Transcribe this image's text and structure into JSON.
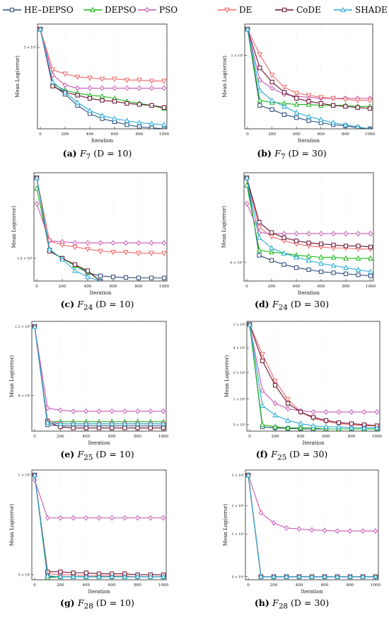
{
  "legend": [
    {
      "name": "HE–DEPSO",
      "color": "#2a4a7a",
      "marker": "square"
    },
    {
      "name": "DEPSO",
      "color": "#18b818",
      "marker": "triangle"
    },
    {
      "name": "PSO",
      "color": "#c858b8",
      "marker": "diamond"
    },
    {
      "name": "DE",
      "color": "#f06868",
      "marker": "triangle-down"
    },
    {
      "name": "CoDE",
      "color": "#6a1030",
      "marker": "square"
    },
    {
      "name": "SHADE",
      "color": "#28aad8",
      "marker": "triangle"
    }
  ],
  "chart_data": [
    {
      "type": "line",
      "caption": {
        "tag": "(a)",
        "fn": "F",
        "sub": "7",
        "dim": "(D = 10)"
      },
      "xlabel": "Iteration",
      "ylabel": "Mean Log(error)",
      "x": [
        0,
        100,
        200,
        300,
        400,
        500,
        600,
        700,
        800,
        900,
        1000
      ],
      "xticks": [
        "0",
        "200",
        "400",
        "600",
        "800",
        "1000"
      ],
      "yticks": [
        {
          "value": 0.82,
          "label": "3 × 10²"
        }
      ],
      "ylim": [
        0.02,
        1.05
      ],
      "series": [
        {
          "values": [
            1.0,
            0.45,
            0.36,
            0.25,
            0.17,
            0.12,
            0.09,
            0.06,
            0.04,
            0.03,
            0.02
          ]
        },
        {
          "values": [
            1.0,
            0.46,
            0.4,
            0.37,
            0.35,
            0.34,
            0.32,
            0.29,
            0.27,
            0.25,
            0.22
          ]
        },
        {
          "values": [
            1.0,
            0.55,
            0.45,
            0.42,
            0.42,
            0.42,
            0.42,
            0.42,
            0.42,
            0.42,
            0.42
          ]
        },
        {
          "values": [
            1.0,
            0.6,
            0.56,
            0.53,
            0.52,
            0.51,
            0.51,
            0.5,
            0.5,
            0.49,
            0.49
          ]
        },
        {
          "values": [
            1.0,
            0.44,
            0.38,
            0.35,
            0.32,
            0.3,
            0.29,
            0.27,
            0.26,
            0.25,
            0.23
          ]
        },
        {
          "values": [
            1.0,
            0.48,
            0.38,
            0.28,
            0.2,
            0.15,
            0.12,
            0.1,
            0.08,
            0.07,
            0.06
          ]
        }
      ]
    },
    {
      "type": "line",
      "caption": {
        "tag": "(b)",
        "fn": "F",
        "sub": "7",
        "dim": "(D = 30)"
      },
      "xlabel": "Iteration",
      "ylabel": "Mean Log(error)",
      "x": [
        0,
        100,
        200,
        300,
        400,
        500,
        600,
        700,
        800,
        900,
        1000
      ],
      "xticks": [
        "0",
        "200",
        "400",
        "600",
        "800",
        "1000"
      ],
      "yticks": [
        {
          "value": 0.74,
          "label": "1 × 10³"
        }
      ],
      "ylim": [
        0.02,
        1.05
      ],
      "series": [
        {
          "values": [
            1.0,
            0.25,
            0.21,
            0.16,
            0.13,
            0.1,
            0.08,
            0.06,
            0.05,
            0.03,
            0.02
          ]
        },
        {
          "values": [
            1.0,
            0.3,
            0.28,
            0.27,
            0.26,
            0.26,
            0.25,
            0.25,
            0.25,
            0.24,
            0.24
          ]
        },
        {
          "values": [
            1.0,
            0.5,
            0.42,
            0.36,
            0.34,
            0.33,
            0.32,
            0.32,
            0.32,
            0.32,
            0.32
          ]
        },
        {
          "values": [
            1.0,
            0.75,
            0.55,
            0.43,
            0.37,
            0.35,
            0.33,
            0.32,
            0.31,
            0.3,
            0.3
          ]
        },
        {
          "values": [
            1.0,
            0.62,
            0.48,
            0.38,
            0.32,
            0.29,
            0.27,
            0.25,
            0.24,
            0.23,
            0.22
          ]
        },
        {
          "values": [
            1.0,
            0.4,
            0.3,
            0.24,
            0.18,
            0.14,
            0.11,
            0.08,
            0.06,
            0.04,
            0.02
          ]
        }
      ]
    },
    {
      "type": "line",
      "caption": {
        "tag": "(c)",
        "fn": "F",
        "sub": "24",
        "dim": "(D = 10)"
      },
      "xlabel": "Iteration",
      "ylabel": "Mean Log(error)",
      "x": [
        0,
        100,
        200,
        300,
        400,
        500,
        600,
        700,
        800,
        900,
        1000
      ],
      "xticks": [
        "0",
        "200",
        "400",
        "600",
        "800",
        "1000"
      ],
      "yticks": [
        {
          "value": 0.22,
          "label": "1.5 × 10²"
        }
      ],
      "ylim": [
        0.0,
        1.05
      ],
      "series": [
        {
          "values": [
            1.0,
            0.3,
            0.22,
            0.15,
            0.08,
            0.05,
            0.04,
            0.035,
            0.03,
            0.03,
            0.03
          ]
        },
        {
          "values": [
            0.9,
            0.3,
            0.22,
            0.15,
            0.09,
            0.0,
            null,
            null,
            null,
            null,
            null
          ]
        },
        {
          "values": [
            0.75,
            0.39,
            0.38,
            0.37,
            0.37,
            0.37,
            0.37,
            0.37,
            0.37,
            0.37,
            0.37
          ]
        },
        {
          "values": [
            1.0,
            0.39,
            0.35,
            0.33,
            0.31,
            0.29,
            0.28,
            0.28,
            0.27,
            0.27,
            0.27
          ]
        },
        {
          "values": [
            1.0,
            0.29,
            0.22,
            0.16,
            0.1,
            0.0,
            null,
            null,
            null,
            null,
            null
          ]
        },
        {
          "values": [
            1.0,
            0.31,
            0.21,
            0.1,
            0.04,
            0.0,
            null,
            null,
            null,
            null,
            null
          ]
        }
      ]
    },
    {
      "type": "line",
      "caption": {
        "tag": "(d)",
        "fn": "F",
        "sub": "24",
        "dim": "(D = 30)"
      },
      "xlabel": "Iteration",
      "ylabel": "Mean Log(error)",
      "x": [
        0,
        100,
        200,
        300,
        400,
        500,
        600,
        700,
        800,
        900,
        1000
      ],
      "xticks": [
        "0",
        "200",
        "400",
        "600",
        "800",
        "1000"
      ],
      "yticks": [
        {
          "value": 0.18,
          "label": "6 × 10²"
        }
      ],
      "ylim": [
        0.0,
        1.05
      ],
      "series": [
        {
          "values": [
            1.0,
            0.25,
            0.2,
            0.16,
            0.13,
            0.11,
            0.09,
            0.08,
            0.07,
            0.06,
            0.05
          ]
        },
        {
          "values": [
            0.93,
            0.3,
            0.28,
            0.27,
            0.25,
            0.24,
            0.23,
            0.23,
            0.22,
            0.22,
            0.22
          ]
        },
        {
          "values": [
            0.75,
            0.47,
            0.46,
            0.46,
            0.46,
            0.46,
            0.46,
            0.46,
            0.46,
            0.46,
            0.46
          ]
        },
        {
          "values": [
            1.0,
            0.52,
            0.43,
            0.39,
            0.36,
            0.34,
            0.33,
            0.32,
            0.32,
            0.31,
            0.31
          ]
        },
        {
          "values": [
            1.0,
            0.57,
            0.47,
            0.42,
            0.39,
            0.37,
            0.36,
            0.35,
            0.34,
            0.34,
            0.33
          ]
        },
        {
          "values": [
            1.0,
            0.42,
            0.32,
            0.27,
            0.23,
            0.2,
            0.17,
            0.15,
            0.13,
            0.11,
            0.09
          ]
        }
      ]
    },
    {
      "type": "line",
      "caption": {
        "tag": "(e)",
        "fn": "F",
        "sub": "25",
        "dim": "(D = 10)"
      },
      "xlabel": "Iteration",
      "ylabel": "Mean Log(error)",
      "x": [
        0,
        100,
        200,
        300,
        400,
        500,
        600,
        700,
        800,
        900,
        1000
      ],
      "xticks": [
        "0",
        "200",
        "400",
        "600",
        "800",
        "1000"
      ],
      "yticks": [
        {
          "value": 1.0,
          "label": "1.2 × 10³"
        },
        {
          "value": 0.34,
          "label": "8 × 10²"
        }
      ],
      "ylim": [
        0.0,
        1.05
      ],
      "series": [
        {
          "values": [
            1.0,
            0.06,
            0.05,
            0.05,
            0.05,
            0.05,
            0.05,
            0.05,
            0.05,
            0.05,
            0.05
          ]
        },
        {
          "values": [
            1.0,
            0.09,
            0.09,
            0.09,
            0.09,
            0.09,
            0.09,
            0.09,
            0.09,
            0.09,
            0.09
          ]
        },
        {
          "values": [
            1.0,
            0.22,
            0.2,
            0.19,
            0.19,
            0.19,
            0.19,
            0.19,
            0.19,
            0.19,
            0.19
          ]
        },
        {
          "values": [
            1.0,
            0.1,
            0.07,
            0.07,
            0.07,
            0.07,
            0.07,
            0.07,
            0.07,
            0.07,
            0.07
          ]
        },
        {
          "values": [
            1.0,
            0.09,
            0.04,
            0.03,
            0.03,
            0.03,
            0.03,
            0.03,
            0.03,
            0.03,
            0.03
          ]
        },
        {
          "values": [
            1.0,
            0.08,
            0.07,
            0.07,
            0.07,
            0.07,
            0.07,
            0.07,
            0.07,
            0.07,
            0.07
          ]
        }
      ]
    },
    {
      "type": "line",
      "caption": {
        "tag": "(f)",
        "fn": "F",
        "sub": "25",
        "dim": "(D = 30)"
      },
      "xlabel": "Iteration",
      "ylabel": "Mean Log(error)",
      "x": [
        0,
        100,
        200,
        300,
        400,
        500,
        600,
        700,
        800,
        900,
        1000
      ],
      "xticks": [
        "0",
        "200",
        "400",
        "600",
        "800",
        "1000"
      ],
      "yticks": [
        {
          "value": 1.0,
          "label": "1 × 10⁴"
        },
        {
          "value": 0.78,
          "label": "4 × 10³"
        },
        {
          "value": 0.55,
          "label": "2 × 10³"
        },
        {
          "value": 0.3,
          "label": "1 × 10³"
        },
        {
          "value": 0.06,
          "label": "5 × 10²"
        }
      ],
      "ylim": [
        0.0,
        1.03
      ],
      "series": [
        {
          "values": [
            1.0,
            0.04,
            0.03,
            0.025,
            0.02,
            0.02,
            0.02,
            0.02,
            0.02,
            0.02,
            0.02
          ]
        },
        {
          "values": [
            1.0,
            0.06,
            0.04,
            0.03,
            0.03,
            0.03,
            0.02,
            0.02,
            0.02,
            0.02,
            0.02
          ]
        },
        {
          "values": [
            1.0,
            0.38,
            0.26,
            0.21,
            0.19,
            0.18,
            0.18,
            0.18,
            0.18,
            0.18,
            0.18
          ]
        },
        {
          "values": [
            1.0,
            0.72,
            0.47,
            0.3,
            0.18,
            0.12,
            0.09,
            0.07,
            0.06,
            0.05,
            0.05
          ]
        },
        {
          "values": [
            1.0,
            0.66,
            0.43,
            0.26,
            0.18,
            0.13,
            0.1,
            0.08,
            0.07,
            0.06,
            0.05
          ]
        },
        {
          "values": [
            1.0,
            0.24,
            0.15,
            0.1,
            0.07,
            0.05,
            0.04,
            0.04,
            0.03,
            0.03,
            0.03
          ]
        }
      ]
    },
    {
      "type": "line",
      "caption": {
        "tag": "(g)",
        "fn": "F",
        "sub": "28",
        "dim": "(D = 10)"
      },
      "xlabel": "Iteration",
      "ylabel": "Mean Log(error)",
      "x": [
        0,
        100,
        200,
        300,
        400,
        500,
        600,
        700,
        800,
        900,
        1000
      ],
      "xticks": [
        "0",
        "200",
        "400",
        "600",
        "800",
        "1000"
      ],
      "yticks": [
        {
          "value": 1.0,
          "label": "1 × 10³"
        },
        {
          "value": 0.0,
          "label": "5 × 10²"
        }
      ],
      "ylim": [
        -0.05,
        1.05
      ],
      "series": [
        {
          "values": [
            1.0,
            -0.02,
            -0.02,
            -0.02,
            -0.02,
            -0.02,
            -0.02,
            -0.02,
            -0.02,
            -0.02,
            -0.02
          ]
        },
        {
          "values": [
            1.0,
            -0.03,
            -0.02,
            -0.02,
            -0.02,
            -0.02,
            -0.02,
            -0.02,
            -0.02,
            -0.02,
            -0.02
          ]
        },
        {
          "values": [
            0.95,
            0.57,
            0.57,
            0.57,
            0.57,
            0.57,
            0.57,
            0.57,
            0.57,
            0.57,
            0.57
          ]
        },
        {
          "values": [
            1.0,
            0.01,
            0.0,
            0.0,
            -0.01,
            -0.01,
            -0.01,
            -0.01,
            -0.02,
            -0.02,
            -0.02
          ]
        },
        {
          "values": [
            1.0,
            0.03,
            0.03,
            0.02,
            0.02,
            0.01,
            0.01,
            0.01,
            0.0,
            0.0,
            0.0
          ]
        },
        {
          "values": [
            1.0,
            -0.01,
            -0.02,
            -0.02,
            -0.02,
            -0.02,
            -0.02,
            -0.02,
            -0.02,
            -0.02,
            -0.02
          ]
        }
      ]
    },
    {
      "type": "line",
      "caption": {
        "tag": "(h)",
        "fn": "F",
        "sub": "28",
        "dim": "(D = 30)"
      },
      "xlabel": "Iteration",
      "ylabel": "Mean Log(error)",
      "x": [
        0,
        100,
        200,
        300,
        400,
        500,
        600,
        700,
        800,
        900,
        1000
      ],
      "xticks": [
        "0",
        "200",
        "400",
        "600",
        "800",
        "1000"
      ],
      "yticks": [
        {
          "value": 1.0,
          "label": "3 × 10³"
        },
        {
          "value": 0.7,
          "label": "2 × 10³"
        },
        {
          "value": 0.42,
          "label": "1 × 10³"
        },
        {
          "value": 0.0,
          "label": "5 × 10²"
        }
      ],
      "ylim": [
        -0.03,
        1.05
      ],
      "series": [
        {
          "values": [
            1.0,
            0.0,
            0.0,
            0.0,
            0.0,
            0.0,
            0.0,
            0.0,
            0.0,
            0.0,
            0.0
          ]
        },
        {
          "values": [
            1.0,
            0.0,
            0.0,
            0.0,
            0.0,
            0.0,
            0.0,
            0.0,
            0.0,
            0.0,
            0.0
          ]
        },
        {
          "values": [
            1.0,
            0.63,
            0.53,
            0.48,
            0.47,
            0.46,
            0.455,
            0.45,
            0.45,
            0.45,
            0.45
          ]
        },
        {
          "values": [
            1.0,
            0.0,
            0.0,
            0.0,
            0.0,
            0.0,
            0.0,
            0.0,
            0.0,
            0.0,
            0.0
          ]
        },
        {
          "values": [
            1.0,
            0.0,
            0.0,
            0.0,
            0.0,
            0.0,
            0.0,
            0.0,
            0.0,
            0.0,
            0.0
          ]
        },
        {
          "values": [
            1.0,
            0.0,
            0.0,
            0.0,
            0.0,
            0.0,
            0.0,
            0.0,
            0.0,
            0.0,
            0.0
          ]
        }
      ]
    }
  ]
}
